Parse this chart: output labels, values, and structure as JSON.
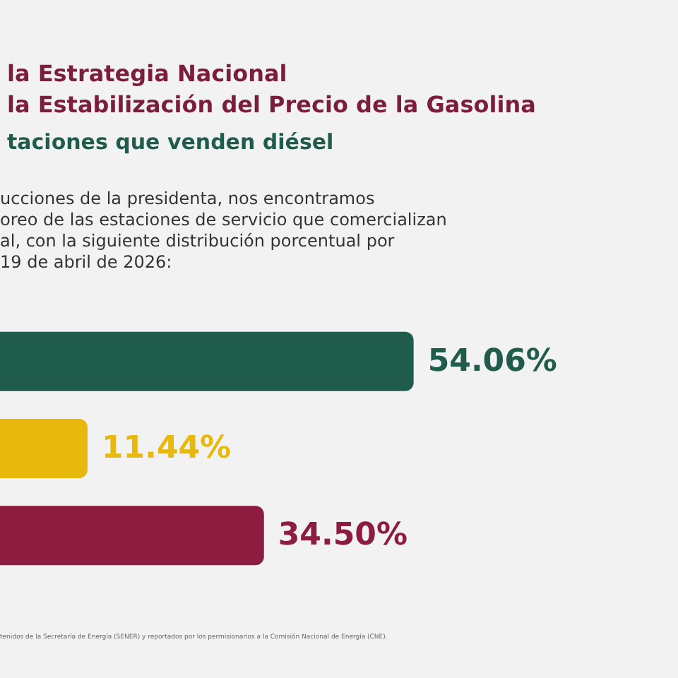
{
  "chart_data": {
    "type": "bar",
    "orientation": "horizontal",
    "title": "la Estrategia Nacional\nla Estabilización del Precio de la Gasolina",
    "subtitle": "taciones que venden diésel",
    "categories": [
      null,
      null,
      null
    ],
    "values": [
      54.06,
      11.44,
      34.5
    ],
    "value_labels": [
      "54.06%",
      "11.44%",
      "34.50%"
    ],
    "colors": [
      "#1f5c4c",
      "#e8b90c",
      "#8c1d40"
    ],
    "annotations": [
      "ucciones de la presidenta, nos encontramos\noreo de las estaciones de servicio que comercializan\nal, con la siguiente distribución porcentual por\n19 de abril de 2026:",
      "tenidos de la Secretaría de Energía (SENER) y reportados por los permisionarios a la Comisión Nacional de Energía (CNE)."
    ],
    "xlabel": null
  }
}
